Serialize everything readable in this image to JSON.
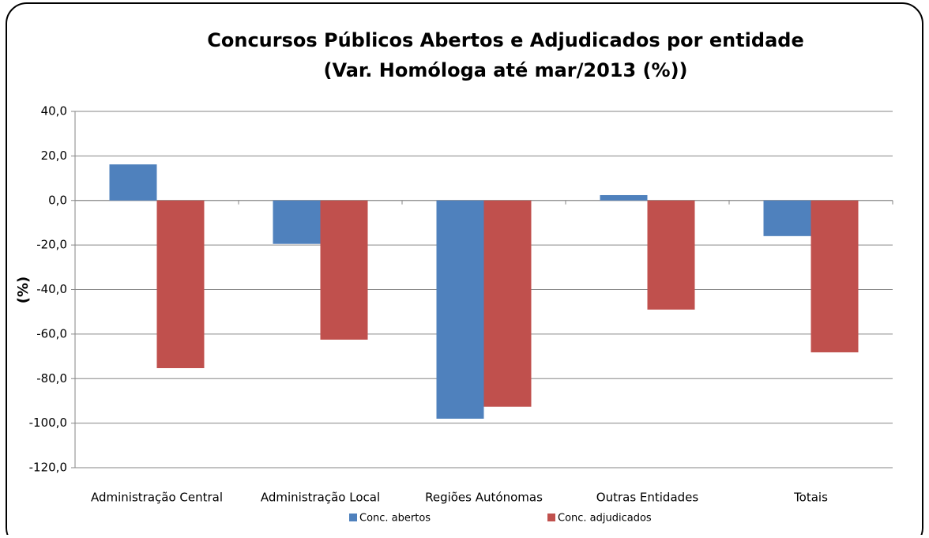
{
  "chart_data": {
    "type": "bar",
    "title": "Concursos Públicos Abertos e Adjudicados por entidade",
    "subtitle": "(Var. Homóloga até mar/2013 (%))",
    "y_label": "(%)",
    "categories": [
      "Administração Central",
      "Administração Local",
      "Regiões Autónomas",
      "Outras Entidades",
      "Totais"
    ],
    "series": [
      {
        "name": "Conc. abertos",
        "color": "#4f81bd",
        "values": [
          16.2,
          -19.5,
          -98.0,
          2.4,
          -16.0
        ]
      },
      {
        "name": "Conc. adjudicados",
        "color": "#c0504d",
        "values": [
          -75.3,
          -62.5,
          -92.6,
          -49.0,
          -68.2
        ]
      }
    ],
    "ylim": [
      -120,
      40
    ],
    "yticks": [
      {
        "value": -120,
        "label": "-120,0"
      },
      {
        "value": -100,
        "label": "-100,0"
      },
      {
        "value": -80,
        "label": "-80,0"
      },
      {
        "value": -60,
        "label": "-60,0"
      },
      {
        "value": -40,
        "label": "-40,0"
      },
      {
        "value": -20,
        "label": "-20,0"
      },
      {
        "value": 0,
        "label": "0,0"
      },
      {
        "value": 20,
        "label": "20,0"
      },
      {
        "value": 40,
        "label": "40,0"
      }
    ],
    "grid": true,
    "legend": "bottom"
  }
}
